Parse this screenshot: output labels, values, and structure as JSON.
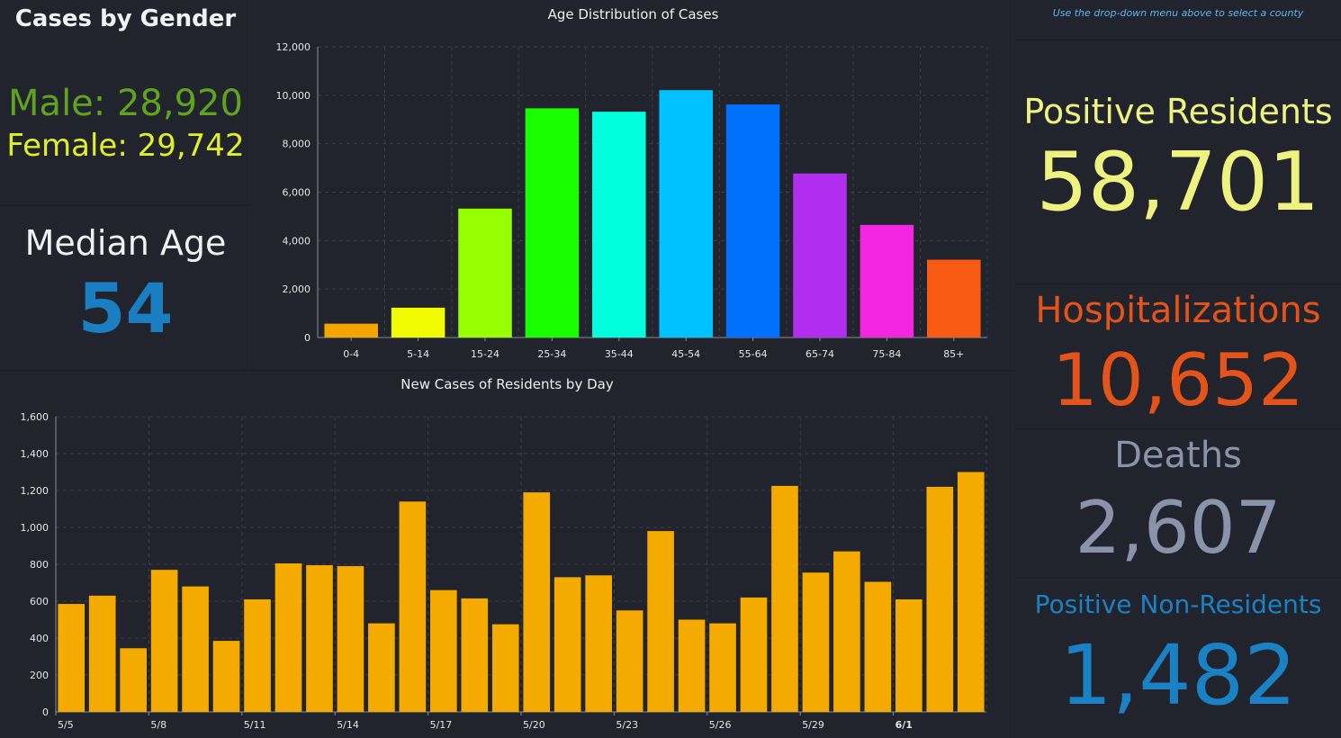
{
  "gender": {
    "title": "Cases by Gender",
    "male": "Male: 28,920",
    "female": "Female: 29,742"
  },
  "median": {
    "title": "Median Age",
    "value": "54"
  },
  "note": "Use the drop-down menu above to select a county",
  "stats": {
    "positive_label": "Positive Residents",
    "positive_value": "58,701",
    "hosp_label": "Hospitalizations",
    "hosp_value": "10,652",
    "deaths_label": "Deaths",
    "deaths_value": "2,607",
    "nonres_label": "Positive Non-Residents",
    "nonres_value": "1,482"
  },
  "chart_data": [
    {
      "type": "bar",
      "title": "Age Distribution of Cases",
      "categories": [
        "0-4",
        "5-14",
        "15-24",
        "25-34",
        "35-44",
        "45-54",
        "55-64",
        "65-74",
        "75-84",
        "85+"
      ],
      "values": [
        570,
        1230,
        5320,
        9460,
        9320,
        10210,
        9620,
        6770,
        4650,
        3210
      ],
      "colors": [
        "#f5a500",
        "#f0fb00",
        "#96ff00",
        "#19ff00",
        "#00ffdc",
        "#00c2ff",
        "#0070ff",
        "#b12ef0",
        "#f526e0",
        "#f95a14"
      ],
      "ylim": [
        0,
        12000
      ],
      "yticks": [
        0,
        2000,
        4000,
        6000,
        8000,
        10000,
        12000
      ],
      "ytick_labels": [
        "0",
        "2,000",
        "4,000",
        "6,000",
        "8,000",
        "10,000",
        "12,000"
      ],
      "grid": true
    },
    {
      "type": "bar",
      "title": "New Cases of Residents by Day",
      "values": [
        585,
        630,
        345,
        770,
        680,
        385,
        610,
        805,
        795,
        790,
        480,
        1140,
        660,
        615,
        475,
        1190,
        730,
        740,
        550,
        980,
        500,
        480,
        620,
        1225,
        755,
        870,
        705,
        610,
        1220,
        1300
      ],
      "color": "#f5aa00",
      "ylim": [
        0,
        1600
      ],
      "yticks": [
        0,
        200,
        400,
        600,
        800,
        1000,
        1200,
        1400,
        1600
      ],
      "ytick_labels": [
        "0",
        "200",
        "400",
        "600",
        "800",
        "1,000",
        "1,200",
        "1,400",
        "1,600"
      ],
      "xtick_labels": [
        "5/5",
        "5/8",
        "5/11",
        "5/14",
        "5/17",
        "5/20",
        "5/23",
        "5/26",
        "5/29",
        "6/1"
      ],
      "xtick_every": 3,
      "grid": true
    }
  ]
}
